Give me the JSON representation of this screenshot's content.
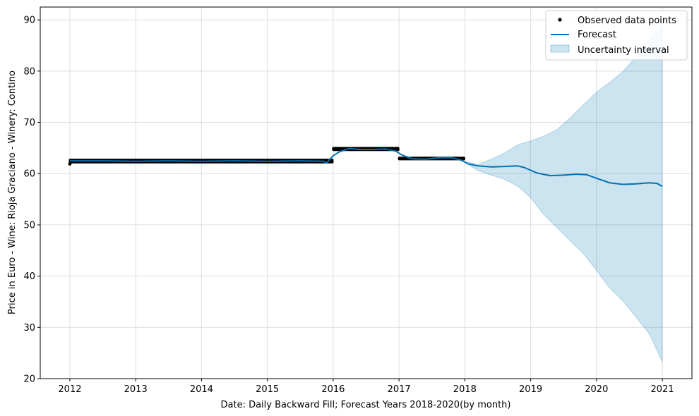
{
  "chart_data": {
    "type": "line",
    "xlabel": "Date: Daily Backward Fill; Forecast Years 2018-2020(by month)",
    "ylabel": "Price in Euro - Wine: Rioja Graciano - Winery: Contino",
    "xlim": [
      2011.55,
      2021.45
    ],
    "ylim": [
      20,
      92.5
    ],
    "x_ticks": [
      "2012",
      "2013",
      "2014",
      "2015",
      "2016",
      "2017",
      "2018",
      "2019",
      "2020",
      "2021"
    ],
    "y_ticks": [
      "20",
      "30",
      "40",
      "50",
      "60",
      "70",
      "80",
      "90"
    ],
    "grid": true,
    "legend_position": "top-right",
    "legend": [
      "Observed data points",
      "Forecast",
      "Uncertainty interval"
    ],
    "colors": {
      "observed": "#000000",
      "forecast": "#0072B2",
      "uncertainty": "#0072B2"
    },
    "observed_segments": [
      {
        "x_start": 2012.0,
        "x_end": 2015.99,
        "values": [
          62.2,
          62.7
        ]
      },
      {
        "x_start": 2016.0,
        "x_end": 2016.99,
        "values": [
          64.6,
          65.0
        ]
      },
      {
        "x_start": 2017.0,
        "x_end": 2017.99,
        "values": [
          62.8,
          63.1
        ]
      }
    ],
    "observed_outliers": [
      {
        "x": 2012.0,
        "y": 61.9
      }
    ],
    "series": [
      {
        "name": "Forecast",
        "x": [
          2012.0,
          2012.5,
          2013.0,
          2013.5,
          2014.0,
          2014.5,
          2015.0,
          2015.5,
          2015.85,
          2015.9,
          2016.0,
          2016.1,
          2016.25,
          2016.4,
          2016.6,
          2016.8,
          2016.95,
          2017.05,
          2017.2,
          2017.4,
          2017.6,
          2017.8,
          2017.95,
          2018.05,
          2018.2,
          2018.4,
          2018.6,
          2018.8,
          2018.9,
          2019.1,
          2019.3,
          2019.5,
          2019.7,
          2019.85,
          2020.0,
          2020.2,
          2020.4,
          2020.6,
          2020.8,
          2020.92,
          2021.0
        ],
        "y": [
          62.5,
          62.5,
          62.4,
          62.5,
          62.4,
          62.5,
          62.4,
          62.5,
          62.4,
          62.1,
          63.5,
          64.3,
          64.9,
          64.7,
          64.7,
          64.8,
          64.4,
          63.6,
          62.9,
          62.8,
          63.1,
          63.1,
          62.6,
          61.9,
          61.5,
          61.3,
          61.4,
          61.5,
          61.2,
          60.1,
          59.6,
          59.7,
          59.9,
          59.8,
          59.1,
          58.2,
          57.9,
          58.0,
          58.2,
          58.1,
          57.5
        ]
      },
      {
        "name": "Uncertainty interval",
        "x": [
          2018.0,
          2018.2,
          2018.4,
          2018.6,
          2018.8,
          2019.0,
          2019.2,
          2019.4,
          2019.6,
          2019.8,
          2020.0,
          2020.2,
          2020.4,
          2020.6,
          2020.8,
          2021.0
        ],
        "upper": [
          62.4,
          61.8,
          62.8,
          64.0,
          65.6,
          66.4,
          67.3,
          68.6,
          70.9,
          73.4,
          75.9,
          77.8,
          79.9,
          82.8,
          86.2,
          89.0
        ],
        "lower": [
          62.2,
          60.6,
          59.7,
          58.9,
          57.6,
          55.3,
          52.0,
          49.4,
          46.9,
          44.4,
          41.1,
          37.7,
          35.2,
          32.0,
          28.8,
          23.3
        ]
      }
    ]
  }
}
